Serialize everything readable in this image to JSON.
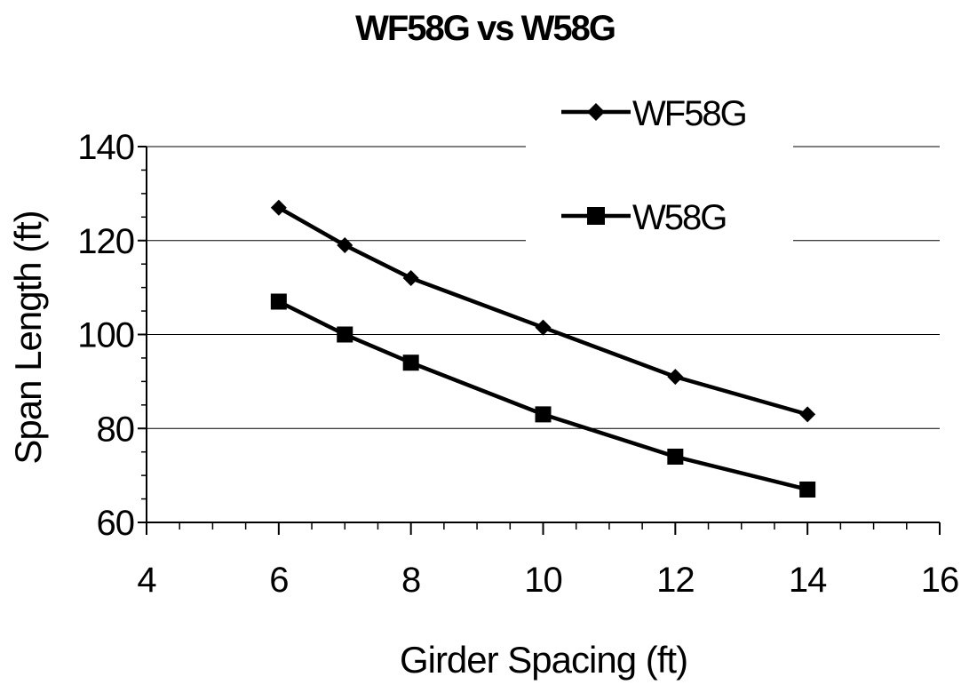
{
  "chart_data": {
    "type": "line",
    "title": "WF58G vs W58G",
    "xlabel": "Girder Spacing (ft)",
    "ylabel": "Span Length (ft)",
    "xlim": [
      4,
      16
    ],
    "ylim": [
      60,
      140
    ],
    "x_ticks": [
      "4",
      "6",
      "8",
      "10",
      "12",
      "14",
      "16"
    ],
    "y_ticks": [
      "60",
      "80",
      "100",
      "120",
      "140"
    ],
    "grid": "horizontal",
    "legend_position": "top-right",
    "series": [
      {
        "name": "WF58G",
        "marker": "diamond",
        "color": "#000000",
        "x": [
          6,
          7,
          8,
          10,
          12,
          14
        ],
        "y": [
          127,
          119,
          112,
          101.5,
          91,
          83
        ]
      },
      {
        "name": "W58G",
        "marker": "square",
        "color": "#000000",
        "x": [
          6,
          7,
          8,
          10,
          12,
          14
        ],
        "y": [
          107,
          100,
          94,
          83,
          74,
          67
        ]
      }
    ]
  }
}
